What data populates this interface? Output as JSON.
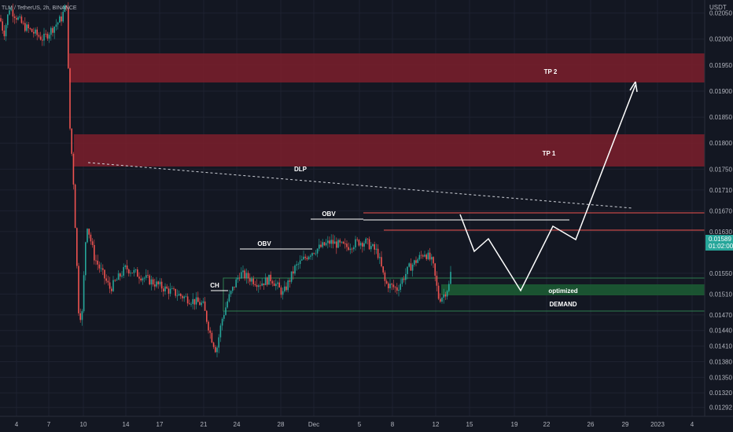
{
  "header": {
    "symbol_line": "TLM / TetherUS, 2h, BINANCE",
    "currency": "USDT"
  },
  "price_tag": {
    "price": "0.01589",
    "countdown": "01:02:00",
    "color": "#26a69a"
  },
  "colors": {
    "background": "#131722",
    "grid": "#1e2230",
    "bull": "#26a69a",
    "bear": "#ef5350",
    "resistance_zone": "#7d1f2c",
    "demand_zone": "#1c5a33",
    "annotation": "#ffffff"
  },
  "chart_data": {
    "type": "candlestick",
    "y_axis": {
      "ticks": [
        "0.02050",
        "0.02000",
        "0.01950",
        "0.01900",
        "0.01850",
        "0.01800",
        "0.01750",
        "0.01710",
        "0.01670",
        "0.01630",
        "0.01550",
        "0.01510",
        "0.01470",
        "0.01440",
        "0.01410",
        "0.01380",
        "0.01350",
        "0.01320",
        "0.01292"
      ],
      "range": [
        0.01275,
        0.02075
      ],
      "position": "right"
    },
    "x_axis": {
      "ticks": [
        "4",
        "7",
        "10",
        "14",
        "17",
        "21",
        "24",
        "28",
        "Dec",
        "5",
        "8",
        "12",
        "15",
        "19",
        "22",
        "26",
        "29",
        "2023",
        "4"
      ]
    },
    "zones": [
      {
        "name": "TP 2",
        "label": "TP 2",
        "low": 0.01925,
        "high": 0.0199,
        "kind": "resistance"
      },
      {
        "name": "TP 1",
        "label": "TP 1",
        "low": 0.01733,
        "high": 0.01808,
        "kind": "resistance"
      },
      {
        "name": "optimized",
        "label": "optimized",
        "low": 0.01483,
        "high": 0.0151,
        "kind": "demand"
      },
      {
        "name": "DEMAND",
        "label": "DEMAND",
        "low": 0.01454,
        "high": 0.01515,
        "kind": "demand-outline"
      }
    ],
    "annotations": [
      "DLP",
      "OBV",
      "OBV",
      "CH"
    ],
    "current_price": 0.01589
  }
}
